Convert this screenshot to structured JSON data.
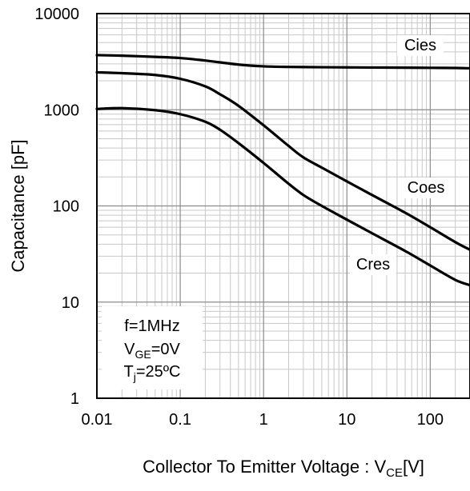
{
  "chart_data": {
    "type": "line",
    "xlabel": {
      "prefix": "Collector To Emitter Voltage : V",
      "subscript": "CE",
      "suffix": "[V]"
    },
    "ylabel": "Capacitance [pF]",
    "x_scale": "log",
    "y_scale": "log",
    "xlim": [
      0.01,
      300
    ],
    "ylim": [
      1,
      10000
    ],
    "x_ticks": [
      {
        "value": 0.01,
        "label": "0.01"
      },
      {
        "value": 0.1,
        "label": "0.1"
      },
      {
        "value": 1,
        "label": "1"
      },
      {
        "value": 10,
        "label": "10"
      },
      {
        "value": 100,
        "label": "100"
      }
    ],
    "y_ticks": [
      {
        "value": 1,
        "label": "1"
      },
      {
        "value": 10,
        "label": "10"
      },
      {
        "value": 100,
        "label": "100"
      },
      {
        "value": 1000,
        "label": "1000"
      },
      {
        "value": 10000,
        "label": "10000"
      }
    ],
    "grid": true,
    "series": [
      {
        "name": "Cies",
        "x": [
          0.01,
          0.02,
          0.05,
          0.1,
          0.2,
          0.5,
          1,
          2,
          5,
          10,
          20,
          50,
          100,
          200,
          300
        ],
        "y": [
          3700,
          3650,
          3550,
          3450,
          3250,
          2950,
          2830,
          2790,
          2770,
          2760,
          2750,
          2740,
          2730,
          2720,
          2700
        ]
      },
      {
        "name": "Coes",
        "x": [
          0.01,
          0.02,
          0.05,
          0.1,
          0.2,
          0.3,
          0.5,
          1,
          2,
          3,
          5,
          10,
          20,
          50,
          100,
          200,
          300
        ],
        "y": [
          2450,
          2400,
          2300,
          2100,
          1750,
          1450,
          1100,
          690,
          420,
          320,
          250,
          180,
          130,
          85,
          60,
          42,
          35
        ]
      },
      {
        "name": "Cres",
        "x": [
          0.01,
          0.02,
          0.05,
          0.1,
          0.2,
          0.3,
          0.5,
          1,
          2,
          3,
          5,
          10,
          20,
          50,
          100,
          200,
          300
        ],
        "y": [
          1020,
          1040,
          990,
          900,
          750,
          620,
          450,
          280,
          170,
          130,
          100,
          72,
          52,
          34,
          24,
          17,
          15
        ]
      }
    ],
    "conditions": [
      {
        "main": "f=1MHz",
        "sub": "",
        "tail": ""
      },
      {
        "main": "V",
        "sub": "GE",
        "tail": "=0V"
      },
      {
        "main": "T",
        "sub": "j",
        "tail": "=25ºC"
      }
    ],
    "colors": {
      "line": "#000000",
      "major_grid": "#8c8c8c",
      "minor_grid": "#c8c8c8",
      "background": "#ffffff"
    }
  }
}
